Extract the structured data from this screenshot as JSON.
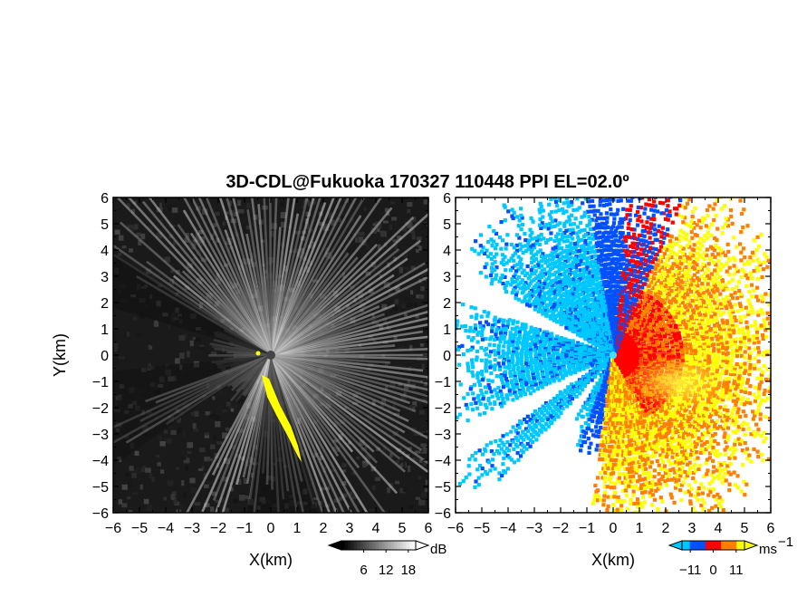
{
  "figure": {
    "title": "3D-CDL@Fukuoka 170327 110448 PPI EL=02.0º"
  },
  "chart_data": [
    {
      "type": "heatmap",
      "product": "reflectivity",
      "xlabel": "X(km)",
      "ylabel": "Y(km)",
      "xlim": [
        -6,
        6
      ],
      "ylim": [
        -6,
        6
      ],
      "xticks": [
        "−6",
        "−5",
        "−4",
        "−3",
        "−2",
        "−1",
        "0",
        "1",
        "2",
        "3",
        "4",
        "5",
        "6"
      ],
      "yticks": [
        "6",
        "5",
        "4",
        "3",
        "2",
        "1",
        "0",
        "−1",
        "−2",
        "−3",
        "−4",
        "−5",
        "−6"
      ],
      "colorbar": {
        "unit": "dB",
        "tick_labels": [
          "6",
          "12",
          "18"
        ],
        "range": [
          0,
          20
        ],
        "colormap": "grayscale",
        "colors": [
          "#000000",
          "#ffffff"
        ]
      },
      "highlight_color": "#ffff00",
      "background_color": "#1a1a1a"
    },
    {
      "type": "heatmap",
      "product": "radial velocity",
      "xlabel": "X(km)",
      "ylabel": "",
      "xlim": [
        -6,
        6
      ],
      "ylim": [
        -6,
        6
      ],
      "xticks": [
        "−6",
        "−5",
        "−4",
        "−3",
        "−2",
        "−1",
        "0",
        "1",
        "2",
        "3",
        "4",
        "5",
        "6"
      ],
      "yticks": [
        "6",
        "5",
        "4",
        "3",
        "2",
        "1",
        "0",
        "−1",
        "−2",
        "−3",
        "−4",
        "−5",
        "−6"
      ],
      "colorbar": {
        "unit": "ms",
        "unit_exponent": "−1",
        "tick_labels": [
          "−11",
          "0",
          "11"
        ],
        "range": [
          -15,
          15
        ],
        "colors": [
          "#00c8ff",
          "#0050ff",
          "#ff0000",
          "#ff8000",
          "#ffff00"
        ]
      },
      "background_color": "#ffffff"
    }
  ]
}
